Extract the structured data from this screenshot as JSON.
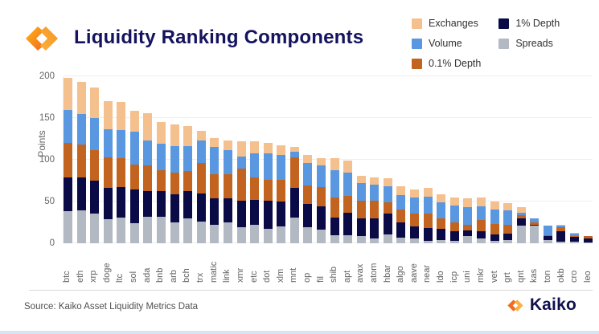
{
  "header": {
    "title": "Liquidity Ranking Components"
  },
  "legend": [
    {
      "label": "Exchanges",
      "color": "#f4c08e"
    },
    {
      "label": "Volume",
      "color": "#5a97e1"
    },
    {
      "label": "0.1% Depth",
      "color": "#c2641f"
    },
    {
      "label": "1% Depth",
      "color": "#0a0b46"
    },
    {
      "label": "Spreads",
      "color": "#b3b9c2"
    }
  ],
  "chart_data": {
    "type": "bar",
    "stacked": true,
    "title": "Liquidity Ranking Components",
    "xlabel": "",
    "ylabel": "Points",
    "ylim": [
      0,
      200
    ],
    "yticks": [
      0,
      50,
      100,
      150,
      200
    ],
    "grid": true,
    "legend_position": "top-right",
    "stack_order_bottom_to_top": [
      "Spreads",
      "1% Depth",
      "0.1% Depth",
      "Volume",
      "Exchanges"
    ],
    "categories": [
      "btc",
      "eth",
      "xrp",
      "doge",
      "ltc",
      "sol",
      "ada",
      "bnb",
      "arb",
      "bch",
      "trx",
      "matic",
      "link",
      "xmr",
      "etc",
      "dot",
      "xlm",
      "mnt",
      "op",
      "fil",
      "shib",
      "apt",
      "avax",
      "atom",
      "hbar",
      "algo",
      "aave",
      "near",
      "ldo",
      "icp",
      "uni",
      "mkr",
      "vet",
      "grt",
      "qnt",
      "kas",
      "ton",
      "okb",
      "cro",
      "leo"
    ],
    "series": [
      {
        "name": "Spreads",
        "color": "#b3b9c2",
        "values": [
          38,
          39,
          36,
          29,
          31,
          24,
          32,
          32,
          25,
          30,
          26,
          22,
          25,
          19,
          22,
          17,
          20,
          31,
          19,
          16,
          10,
          10,
          9,
          6,
          11,
          7,
          6,
          3,
          4,
          3,
          9,
          6,
          3,
          4,
          21,
          21,
          4,
          2,
          2,
          1
        ]
      },
      {
        "name": "1% Depth",
        "color": "#0a0b46",
        "values": [
          41,
          40,
          39,
          37,
          36,
          40,
          31,
          31,
          34,
          33,
          34,
          32,
          29,
          32,
          30,
          34,
          30,
          35,
          28,
          28,
          21,
          27,
          21,
          24,
          25,
          18,
          14,
          15,
          13,
          11,
          6,
          8,
          8,
          8,
          9,
          1,
          5,
          12,
          6,
          5
        ]
      },
      {
        "name": "0.1% Depth",
        "color": "#c2641f",
        "values": [
          41,
          39,
          37,
          37,
          35,
          30,
          30,
          25,
          26,
          24,
          36,
          29,
          29,
          38,
          27,
          25,
          26,
          37,
          22,
          23,
          24,
          20,
          21,
          21,
          13,
          15,
          16,
          18,
          13,
          11,
          7,
          14,
          12,
          10,
          4,
          3,
          1,
          5,
          1,
          3
        ]
      },
      {
        "name": "Volume",
        "color": "#5a97e1",
        "values": [
          40,
          37,
          38,
          34,
          34,
          40,
          30,
          31,
          31,
          29,
          27,
          32,
          29,
          15,
          29,
          32,
          30,
          7,
          27,
          26,
          33,
          28,
          21,
          19,
          19,
          18,
          19,
          20,
          19,
          20,
          21,
          16,
          17,
          17,
          3,
          5,
          11,
          2,
          3,
          0
        ]
      },
      {
        "name": "Exchanges",
        "color": "#f4c08e",
        "values": [
          38,
          38,
          37,
          33,
          33,
          25,
          33,
          26,
          26,
          24,
          12,
          11,
          11,
          18,
          14,
          12,
          11,
          5,
          10,
          9,
          14,
          14,
          9,
          9,
          10,
          10,
          9,
          10,
          10,
          10,
          11,
          11,
          10,
          9,
          6,
          0,
          0,
          1,
          1,
          0
        ]
      }
    ],
    "totals": [
      198,
      193,
      187,
      170,
      169,
      159,
      156,
      145,
      142,
      140,
      135,
      126,
      123,
      122,
      122,
      120,
      117,
      115,
      106,
      102,
      102,
      99,
      81,
      79,
      78,
      68,
      64,
      66,
      59,
      55,
      54,
      55,
      50,
      48,
      43,
      30,
      21,
      22,
      13,
      9
    ]
  },
  "footer": {
    "source": "Source: Kaiko Asset Liquidity Metrics Data",
    "brand": "Kaiko"
  }
}
